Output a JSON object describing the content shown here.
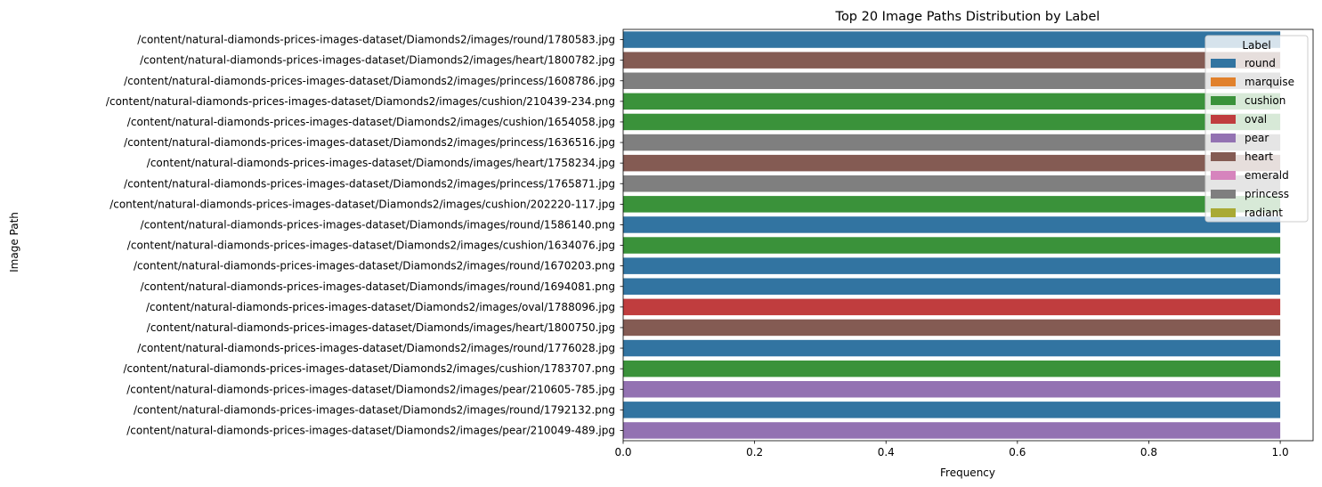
{
  "chart_data": {
    "type": "bar",
    "orientation": "horizontal",
    "title": "Top 20 Image Paths Distribution by Label",
    "xlabel": "Frequency",
    "ylabel": "Image Path",
    "xlim": [
      0,
      1.05
    ],
    "xticks": [
      0.0,
      0.2,
      0.4,
      0.6,
      0.8,
      1.0
    ],
    "xtick_labels": [
      "0.0",
      "0.2",
      "0.4",
      "0.6",
      "0.8",
      "1.0"
    ],
    "grid": false,
    "legend": {
      "title": "Label",
      "placement": "top-right",
      "entries": [
        {
          "name": "round",
          "color": "#3274a1"
        },
        {
          "name": "marquise",
          "color": "#e1812c"
        },
        {
          "name": "cushion",
          "color": "#3a923a"
        },
        {
          "name": "oval",
          "color": "#c03d3e"
        },
        {
          "name": "pear",
          "color": "#9372b2"
        },
        {
          "name": "heart",
          "color": "#845b53"
        },
        {
          "name": "emerald",
          "color": "#d684bd"
        },
        {
          "name": "princess",
          "color": "#7f7f7f"
        },
        {
          "name": "radiant",
          "color": "#a9aa35"
        }
      ]
    },
    "bars": [
      {
        "category": "/content/natural-diamonds-prices-images-dataset/Diamonds2/images/round/1780583.jpg",
        "value": 1.0,
        "label": "round"
      },
      {
        "category": "/content/natural-diamonds-prices-images-dataset/Diamonds2/images/heart/1800782.jpg",
        "value": 1.0,
        "label": "heart"
      },
      {
        "category": "/content/natural-diamonds-prices-images-dataset/Diamonds2/images/princess/1608786.jpg",
        "value": 1.0,
        "label": "princess"
      },
      {
        "category": "/content/natural-diamonds-prices-images-dataset/Diamonds2/images/cushion/210439-234.png",
        "value": 1.0,
        "label": "cushion"
      },
      {
        "category": "/content/natural-diamonds-prices-images-dataset/Diamonds2/images/cushion/1654058.jpg",
        "value": 1.0,
        "label": "cushion"
      },
      {
        "category": "/content/natural-diamonds-prices-images-dataset/Diamonds2/images/princess/1636516.jpg",
        "value": 1.0,
        "label": "princess"
      },
      {
        "category": "/content/natural-diamonds-prices-images-dataset/Diamonds/images/heart/1758234.jpg",
        "value": 1.0,
        "label": "heart"
      },
      {
        "category": "/content/natural-diamonds-prices-images-dataset/Diamonds2/images/princess/1765871.jpg",
        "value": 1.0,
        "label": "princess"
      },
      {
        "category": "/content/natural-diamonds-prices-images-dataset/Diamonds2/images/cushion/202220-117.jpg",
        "value": 1.0,
        "label": "cushion"
      },
      {
        "category": "/content/natural-diamonds-prices-images-dataset/Diamonds/images/round/1586140.png",
        "value": 1.0,
        "label": "round"
      },
      {
        "category": "/content/natural-diamonds-prices-images-dataset/Diamonds2/images/cushion/1634076.jpg",
        "value": 1.0,
        "label": "cushion"
      },
      {
        "category": "/content/natural-diamonds-prices-images-dataset/Diamonds2/images/round/1670203.png",
        "value": 1.0,
        "label": "round"
      },
      {
        "category": "/content/natural-diamonds-prices-images-dataset/Diamonds/images/round/1694081.png",
        "value": 1.0,
        "label": "round"
      },
      {
        "category": "/content/natural-diamonds-prices-images-dataset/Diamonds2/images/oval/1788096.jpg",
        "value": 1.0,
        "label": "oval"
      },
      {
        "category": "/content/natural-diamonds-prices-images-dataset/Diamonds/images/heart/1800750.jpg",
        "value": 1.0,
        "label": "heart"
      },
      {
        "category": "/content/natural-diamonds-prices-images-dataset/Diamonds2/images/round/1776028.jpg",
        "value": 1.0,
        "label": "round"
      },
      {
        "category": "/content/natural-diamonds-prices-images-dataset/Diamonds2/images/cushion/1783707.png",
        "value": 1.0,
        "label": "cushion"
      },
      {
        "category": "/content/natural-diamonds-prices-images-dataset/Diamonds2/images/pear/210605-785.jpg",
        "value": 1.0,
        "label": "pear"
      },
      {
        "category": "/content/natural-diamonds-prices-images-dataset/Diamonds2/images/round/1792132.png",
        "value": 1.0,
        "label": "round"
      },
      {
        "category": "/content/natural-diamonds-prices-images-dataset/Diamonds2/images/pear/210049-489.jpg",
        "value": 1.0,
        "label": "pear"
      }
    ]
  }
}
